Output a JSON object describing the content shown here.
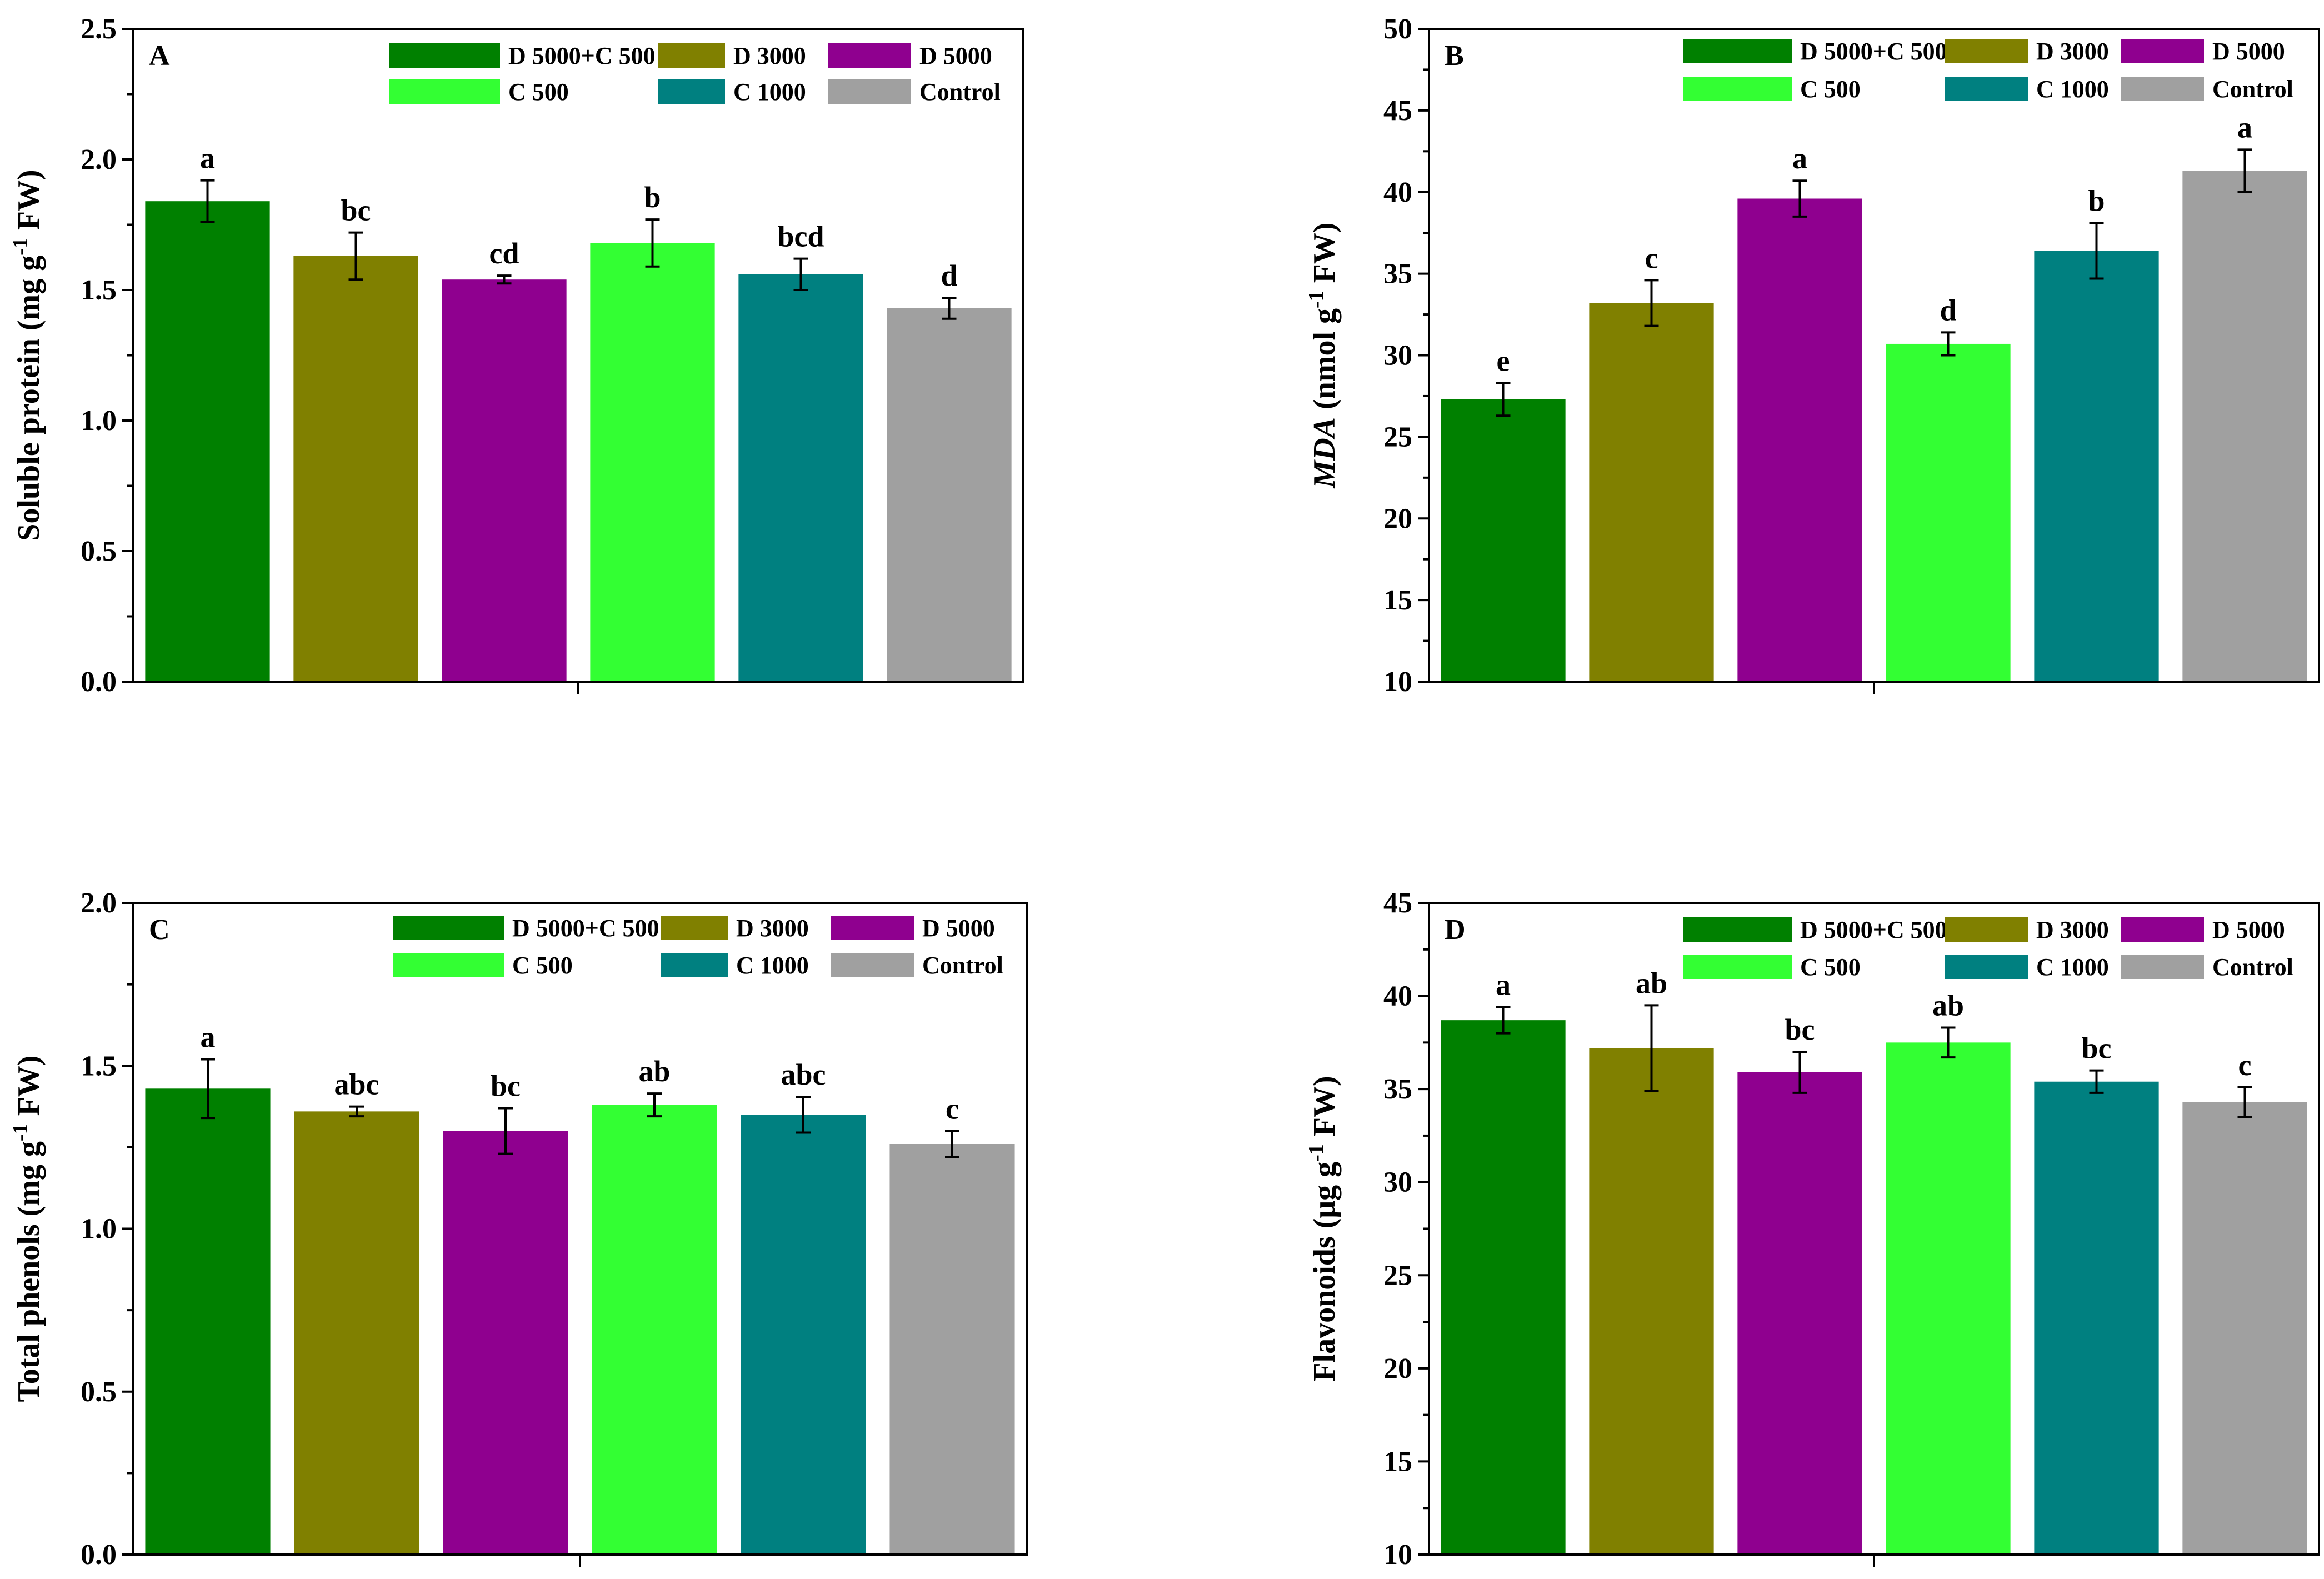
{
  "figure": {
    "colors": {
      "D 5000+C 500": "#008000",
      "D 3000": "#808000",
      "D 5000": "#8F008F",
      "C 500": "#33FF33",
      "C 1000": "#008080",
      "Control": "#A0A0A0"
    }
  },
  "chart_data": [
    {
      "panel": "A",
      "type": "bar",
      "categories": [
        "D 5000+C 500",
        "D 3000",
        "D 5000",
        "C 500",
        "C 1000",
        "Control"
      ],
      "values": [
        1.84,
        1.63,
        1.54,
        1.68,
        1.56,
        1.43
      ],
      "errors": [
        0.08,
        0.09,
        0.015,
        0.09,
        0.06,
        0.04
      ],
      "significance": [
        "a",
        "bc",
        "cd",
        "b",
        "bcd",
        "d"
      ],
      "ylabel": "Soluble protein (mg g⁻¹ FW)",
      "ylim": [
        0,
        2.5
      ],
      "yticks": [
        "0.0",
        "0.5",
        "1.0",
        "1.5",
        "2.0",
        "2.5"
      ],
      "legend": [
        "D 5000+C 500",
        "D 3000",
        "D 5000",
        "C 500",
        "C 1000",
        "Control"
      ],
      "legend_position": "top-right"
    },
    {
      "panel": "B",
      "type": "bar",
      "categories": [
        "D 5000+C 500",
        "D 3000",
        "D 5000",
        "C 500",
        "C 1000",
        "Control"
      ],
      "values": [
        27.3,
        33.2,
        39.6,
        30.7,
        36.4,
        41.3
      ],
      "errors": [
        1.0,
        1.4,
        1.1,
        0.7,
        1.7,
        1.3
      ],
      "significance": [
        "e",
        "c",
        "a",
        "d",
        "b",
        "a"
      ],
      "ylabel": "MDA (nmol g⁻¹ FW)",
      "ylim": [
        10,
        50
      ],
      "yticks": [
        "10",
        "15",
        "20",
        "25",
        "30",
        "35",
        "40",
        "45",
        "50"
      ],
      "legend": [
        "D 5000+C 500",
        "D 3000",
        "D 5000",
        "C 500",
        "C 1000",
        "Control"
      ],
      "legend_position": "top-right"
    },
    {
      "panel": "C",
      "type": "bar",
      "categories": [
        "D 5000+C 500",
        "D 3000",
        "D 5000",
        "C 500",
        "C 1000",
        "Control"
      ],
      "values": [
        1.43,
        1.36,
        1.3,
        1.38,
        1.35,
        1.26
      ],
      "errors": [
        0.09,
        0.015,
        0.07,
        0.035,
        0.055,
        0.04
      ],
      "significance": [
        "a",
        "abc",
        "bc",
        "ab",
        "abc",
        "c"
      ],
      "ylabel": "Total phenols (mg g⁻¹ FW)",
      "ylim": [
        0,
        2.0
      ],
      "yticks": [
        "0.0",
        "0.5",
        "1.0",
        "1.5",
        "2.0"
      ],
      "legend": [
        "D 5000+C 500",
        "D 3000",
        "D 5000",
        "C 500",
        "C 1000",
        "Control"
      ],
      "legend_position": "top-right"
    },
    {
      "panel": "D",
      "type": "bar",
      "categories": [
        "D 5000+C 500",
        "D 3000",
        "D 5000",
        "C 500",
        "C 1000",
        "Control"
      ],
      "values": [
        38.7,
        37.2,
        35.9,
        37.5,
        35.4,
        34.3
      ],
      "errors": [
        0.7,
        2.3,
        1.1,
        0.8,
        0.6,
        0.8
      ],
      "significance": [
        "a",
        "ab",
        "bc",
        "ab",
        "bc",
        "c"
      ],
      "ylabel": "Flavonoids (μg g⁻¹ FW)",
      "ylim": [
        10,
        45
      ],
      "yticks": [
        "10",
        "15",
        "20",
        "25",
        "30",
        "35",
        "40",
        "45"
      ],
      "legend": [
        "D 5000+C 500",
        "D 3000",
        "D 5000",
        "C 500",
        "C 1000",
        "Control"
      ],
      "legend_position": "top-right"
    }
  ]
}
